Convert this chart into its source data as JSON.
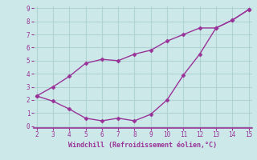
{
  "x_upper": [
    2,
    3,
    4,
    5,
    6,
    7,
    8,
    9,
    10,
    11,
    12,
    13,
    14,
    15
  ],
  "y_upper": [
    2.3,
    3.0,
    3.8,
    4.8,
    5.1,
    5.0,
    5.5,
    5.8,
    6.5,
    7.0,
    7.5,
    7.5,
    8.1,
    8.9
  ],
  "x_lower": [
    2,
    3,
    4,
    5,
    6,
    7,
    8,
    9,
    10,
    11,
    12,
    13,
    14,
    15
  ],
  "y_lower": [
    2.3,
    1.9,
    1.3,
    0.6,
    0.4,
    0.6,
    0.4,
    0.9,
    2.0,
    3.9,
    5.5,
    7.5,
    8.1,
    8.9
  ],
  "line_color": "#993399",
  "bg_color": "#cce8e8",
  "grid_color": "#b0d4d4",
  "border_color": "#993399",
  "xlabel": "Windchill (Refroidissement éolien,°C)",
  "xlim": [
    2,
    15
  ],
  "ylim": [
    0,
    9
  ],
  "xticks": [
    2,
    3,
    4,
    5,
    6,
    7,
    8,
    9,
    10,
    11,
    12,
    13,
    14,
    15
  ],
  "yticks": [
    0,
    1,
    2,
    3,
    4,
    5,
    6,
    7,
    8,
    9
  ],
  "xlabel_color": "#993399",
  "tick_color": "#993399",
  "marker": "D",
  "markersize": 2.5,
  "linewidth": 1.0
}
